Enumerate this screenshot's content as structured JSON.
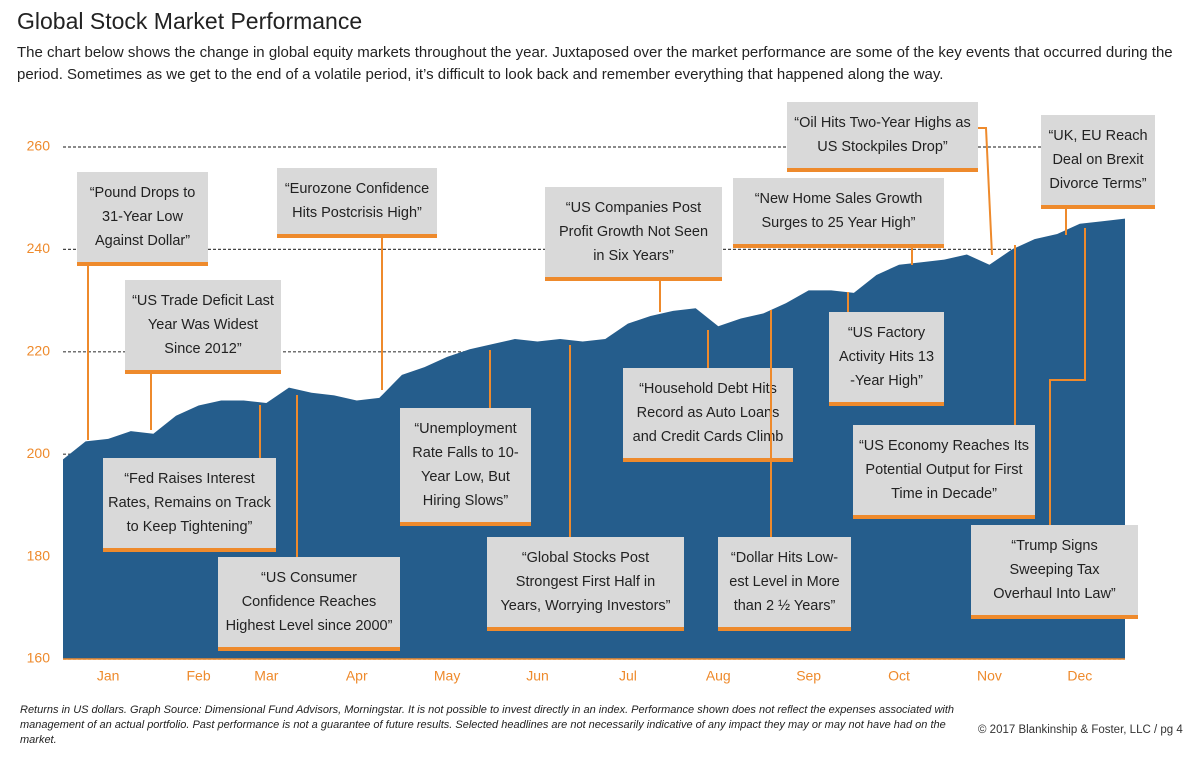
{
  "header": {
    "title": "Global Stock Market Performance",
    "subtitle": "The chart below shows the change in global equity markets throughout the year. Juxtaposed over the market performance are some of the key events that occurred during the period. Sometimes as we get to the end of a volatile period, it’s difficult to look back and remember everything that happened along the way."
  },
  "chart_data": {
    "type": "area",
    "color": "#255d8c",
    "grid": true,
    "categories": [
      null,
      null,
      "Jan",
      null,
      null,
      null,
      "Feb",
      null,
      null,
      "Mar",
      null,
      null,
      null,
      "Apr",
      null,
      null,
      null,
      "May",
      null,
      null,
      null,
      "Jun",
      null,
      null,
      null,
      "Jul",
      null,
      null,
      null,
      "Aug",
      null,
      null,
      null,
      "Sep",
      null,
      null,
      null,
      "Oct",
      null,
      null,
      null,
      "Nov",
      null,
      null,
      null,
      "Dec",
      null,
      null
    ],
    "values": [
      199,
      202.5,
      203,
      204.5,
      204,
      207.5,
      209.5,
      210.5,
      210.5,
      210,
      213,
      212,
      211.5,
      210.5,
      211,
      215.5,
      217,
      219,
      220.5,
      221.5,
      222.5,
      222,
      222.5,
      222,
      222.5,
      225.5,
      227,
      228,
      228.5,
      225,
      226.5,
      227.5,
      229.5,
      232,
      232,
      231.5,
      235,
      237,
      237.5,
      238,
      239,
      237,
      240,
      242,
      243,
      245,
      245.5,
      246
    ],
    "ylim": [
      160,
      260
    ],
    "yticks": [
      160,
      180,
      200,
      220,
      240,
      260
    ],
    "annotations": [
      {
        "lines": [
          "“Pound Drops to",
          "31-Year Low",
          "Against Dollar”"
        ]
      },
      {
        "lines": [
          "“US Trade Deficit Last",
          "Year Was Widest",
          "Since 2012”"
        ]
      },
      {
        "lines": [
          "“Fed Raises Interest",
          "Rates, Remains on Track",
          "to Keep Tightening”"
        ]
      },
      {
        "lines": [
          "“US Consumer",
          "Confidence Reaches",
          "Highest Level since 2000”"
        ]
      },
      {
        "lines": [
          "“Eurozone Confidence",
          "Hits Postcrisis High”"
        ]
      },
      {
        "lines": [
          "“Unemployment",
          "Rate Falls to 10-",
          "Year Low, But",
          "Hiring Slows”"
        ]
      },
      {
        "lines": [
          "“US Companies Post",
          "Profit Growth Not Seen",
          "in Six Years”"
        ]
      },
      {
        "lines": [
          "“Global Stocks Post",
          "Strongest First Half in",
          "Years, Worrying Investors”"
        ]
      },
      {
        "lines": [
          "“Household Debt Hits",
          "Record as Auto Loans",
          "and Credit Cards Climb"
        ]
      },
      {
        "lines": [
          "“Oil Hits Two-Year Highs as",
          "US Stockpiles Drop”"
        ]
      },
      {
        "lines": [
          "“New Home Sales Growth",
          "Surges to 25 Year High”"
        ]
      },
      {
        "lines": [
          "“US Factory",
          "Activity Hits 13",
          "-Year High”"
        ]
      },
      {
        "lines": [
          "“UK, EU Reach",
          "Deal on Brexit",
          "Divorce Terms”"
        ]
      },
      {
        "lines": [
          "“US Economy Reaches Its",
          "Potential Output for First",
          "Time in Decade”"
        ]
      },
      {
        "lines": [
          "“Dollar Hits Low-",
          "est Level in More",
          "than 2 ½ Years”"
        ]
      },
      {
        "lines": [
          "“Trump Signs",
          "Sweeping Tax",
          "Overhaul Into Law”"
        ]
      }
    ]
  },
  "footer": {
    "note": "Returns in US dollars. Graph Source: Dimensional Fund Advisors, Morningstar. It is not possible to invest directly in an index. Performance shown does not reflect the expenses associated with management of an actual portfolio. Past performance is not a guarantee of future results. Selected headlines are not necessarily indicative of any impact they may or may not have had on the market.",
    "copyright": "© 2017 Blankinship & Foster, LLC / pg 4"
  }
}
